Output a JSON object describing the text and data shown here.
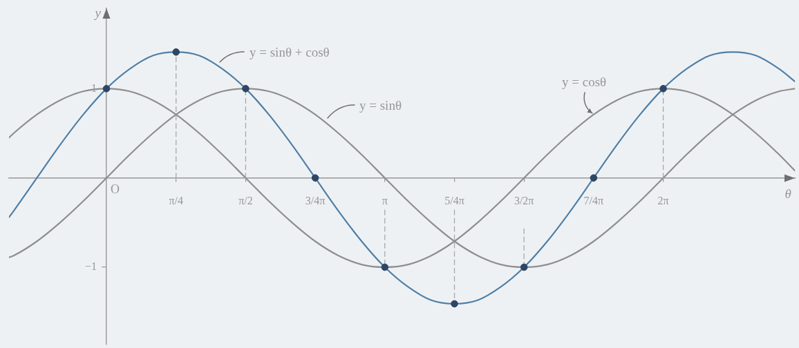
{
  "chart_data": {
    "type": "line",
    "xlabel": "θ",
    "ylabel": "y",
    "xlim": [
      -1.1,
      7.77
    ],
    "ylim": [
      -1.86,
      1.9
    ],
    "xticks": [
      {
        "value": 0.7854,
        "label": "π/4"
      },
      {
        "value": 1.5708,
        "label": "π/2"
      },
      {
        "value": 2.3562,
        "label": "3/4π"
      },
      {
        "value": 3.1416,
        "label": "π"
      },
      {
        "value": 3.927,
        "label": "5/4π"
      },
      {
        "value": 4.7124,
        "label": "3/2π"
      },
      {
        "value": 5.4978,
        "label": "7/4π"
      },
      {
        "value": 6.2832,
        "label": "2π"
      }
    ],
    "yticks": [
      {
        "value": -1,
        "label": "−1"
      },
      1
    ],
    "annotations": [
      {
        "text": "O",
        "x": 0,
        "y": 0
      }
    ],
    "x": [
      -1.1,
      -1.0472,
      -0.7854,
      -0.5236,
      -0.2618,
      0,
      0.2618,
      0.5236,
      0.7854,
      1.0472,
      1.309,
      1.5708,
      1.8326,
      2.0944,
      2.3562,
      2.618,
      2.8798,
      3.1416,
      3.4034,
      3.6652,
      3.927,
      4.1888,
      4.4506,
      4.7124,
      4.9742,
      5.236,
      5.4978,
      5.7596,
      6.0214,
      6.2832,
      6.545,
      6.8068,
      7.0686,
      7.3304,
      7.5922,
      7.77
    ],
    "series": [
      {
        "name": "y = sinθ",
        "color": "#8e8e8e",
        "values": [
          -0.89,
          -0.87,
          -0.71,
          -0.5,
          -0.26,
          0,
          0.26,
          0.5,
          0.71,
          0.87,
          0.97,
          1,
          0.97,
          0.87,
          0.71,
          0.5,
          0.26,
          0,
          -0.26,
          -0.5,
          -0.71,
          -0.87,
          -0.97,
          -1,
          -0.97,
          -0.87,
          -0.71,
          -0.5,
          -0.26,
          0,
          0.26,
          0.5,
          0.71,
          0.87,
          0.97,
          1
        ]
      },
      {
        "name": "y = cosθ",
        "color": "#8e8e8e",
        "values": [
          0.45,
          0.5,
          0.71,
          0.87,
          0.97,
          1,
          0.97,
          0.87,
          0.71,
          0.5,
          0.26,
          0,
          -0.26,
          -0.5,
          -0.71,
          -0.87,
          -0.97,
          -1,
          -0.97,
          -0.87,
          -0.71,
          -0.5,
          -0.26,
          0,
          0.26,
          0.5,
          0.71,
          0.87,
          0.97,
          1,
          0.97,
          0.87,
          0.71,
          0.5,
          0.26,
          0.08
        ]
      },
      {
        "name": "y = sinθ + cosθ",
        "color": "#4f7fa6",
        "values": [
          -0.44,
          -0.37,
          0,
          0.37,
          0.71,
          1,
          1.22,
          1.37,
          1.41,
          1.37,
          1.22,
          1,
          0.71,
          0.37,
          0,
          -0.37,
          -0.71,
          -1,
          -1.22,
          -1.37,
          -1.41,
          -1.37,
          -1.22,
          -1,
          -0.71,
          -0.37,
          0,
          0.37,
          0.71,
          1,
          1.22,
          1.37,
          1.41,
          1.37,
          1.22,
          1.08
        ]
      },
      {
        "type": "line",
        "x": [
          0.7854,
          0.7854
        ],
        "values": [
          0,
          1.41
        ],
        "color": "#a6a6a6",
        "line_style": "dashed"
      },
      {
        "type": "line",
        "x": [
          1.5708,
          1.5708
        ],
        "values": [
          0,
          1
        ],
        "color": "#a6a6a6",
        "line_style": "dashed"
      },
      {
        "type": "line",
        "x": [
          3.1416,
          3.1416
        ],
        "values": [
          -0.36,
          -1
        ],
        "color": "#a6a6a6",
        "line_style": "dashed"
      },
      {
        "type": "line",
        "x": [
          3.927,
          3.927
        ],
        "values": [
          -0.36,
          -1.41
        ],
        "color": "#a6a6a6",
        "line_style": "dashed"
      },
      {
        "type": "line",
        "x": [
          4.7124,
          4.7124
        ],
        "values": [
          -0.57,
          -1
        ],
        "color": "#a6a6a6",
        "line_style": "dashed"
      },
      {
        "type": "line",
        "x": [
          6.2832,
          6.2832
        ],
        "values": [
          0,
          1
        ],
        "color": "#a6a6a6",
        "line_style": "dashed"
      },
      {
        "type": "scatter",
        "x": [
          0,
          0.7854,
          1.5708,
          2.3562,
          3.1416,
          3.927,
          4.7124,
          5.4978,
          6.2832
        ],
        "values": [
          1,
          1.41,
          1,
          0,
          -1,
          -1.41,
          -1,
          0,
          1
        ],
        "color": "#2d4663",
        "marker": "circle"
      }
    ]
  }
}
